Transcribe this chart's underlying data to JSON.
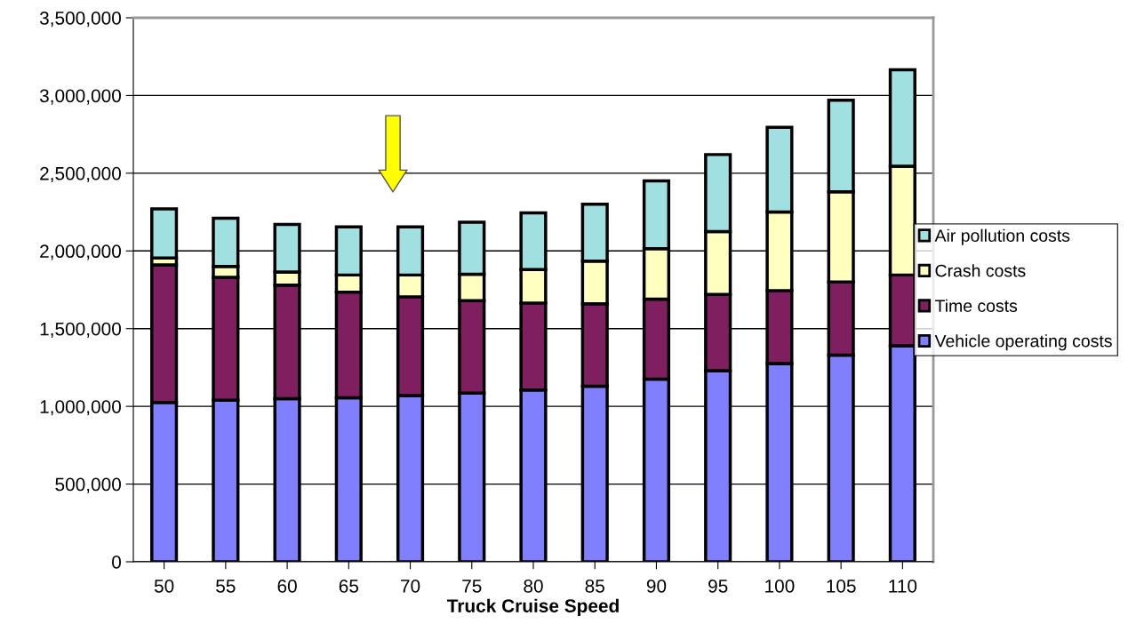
{
  "chart_data": {
    "type": "bar",
    "stacked": true,
    "xlabel": "Truck Cruise Speed",
    "categories": [
      "50",
      "55",
      "60",
      "65",
      "70",
      "75",
      "80",
      "85",
      "90",
      "95",
      "100",
      "105",
      "110"
    ],
    "series": [
      {
        "name": "Vehicle operating costs",
        "color": "#8080ff",
        "values": [
          1025000,
          1040000,
          1050000,
          1055000,
          1070000,
          1085000,
          1105000,
          1130000,
          1175000,
          1230000,
          1275000,
          1330000,
          1390000
        ]
      },
      {
        "name": "Time costs",
        "color": "#7f1f5f",
        "values": [
          885000,
          790000,
          730000,
          680000,
          635000,
          595000,
          560000,
          530000,
          515000,
          490000,
          470000,
          470000,
          455000
        ]
      },
      {
        "name": "Crash costs",
        "color": "#ffffc0",
        "values": [
          45000,
          70000,
          85000,
          110000,
          140000,
          170000,
          215000,
          275000,
          325000,
          405000,
          505000,
          580000,
          700000
        ]
      },
      {
        "name": "Air pollution costs",
        "color": "#a0e0e0",
        "values": [
          315000,
          310000,
          305000,
          310000,
          310000,
          335000,
          365000,
          365000,
          435000,
          495000,
          545000,
          590000,
          620000
        ]
      }
    ],
    "ylim": [
      0,
      3500000
    ],
    "yticks": [
      {
        "value": 0,
        "label": "0"
      },
      {
        "value": 500000,
        "label": "500,000"
      },
      {
        "value": 1000000,
        "label": "1,000,000"
      },
      {
        "value": 1500000,
        "label": "1,500,000"
      },
      {
        "value": 2000000,
        "label": "2,000,000"
      },
      {
        "value": 2500000,
        "label": "2,500,000"
      },
      {
        "value": 3000000,
        "label": "3,000,000"
      },
      {
        "value": 3500000,
        "label": "3,500,000"
      }
    ],
    "grid": "y",
    "legend": "right"
  }
}
